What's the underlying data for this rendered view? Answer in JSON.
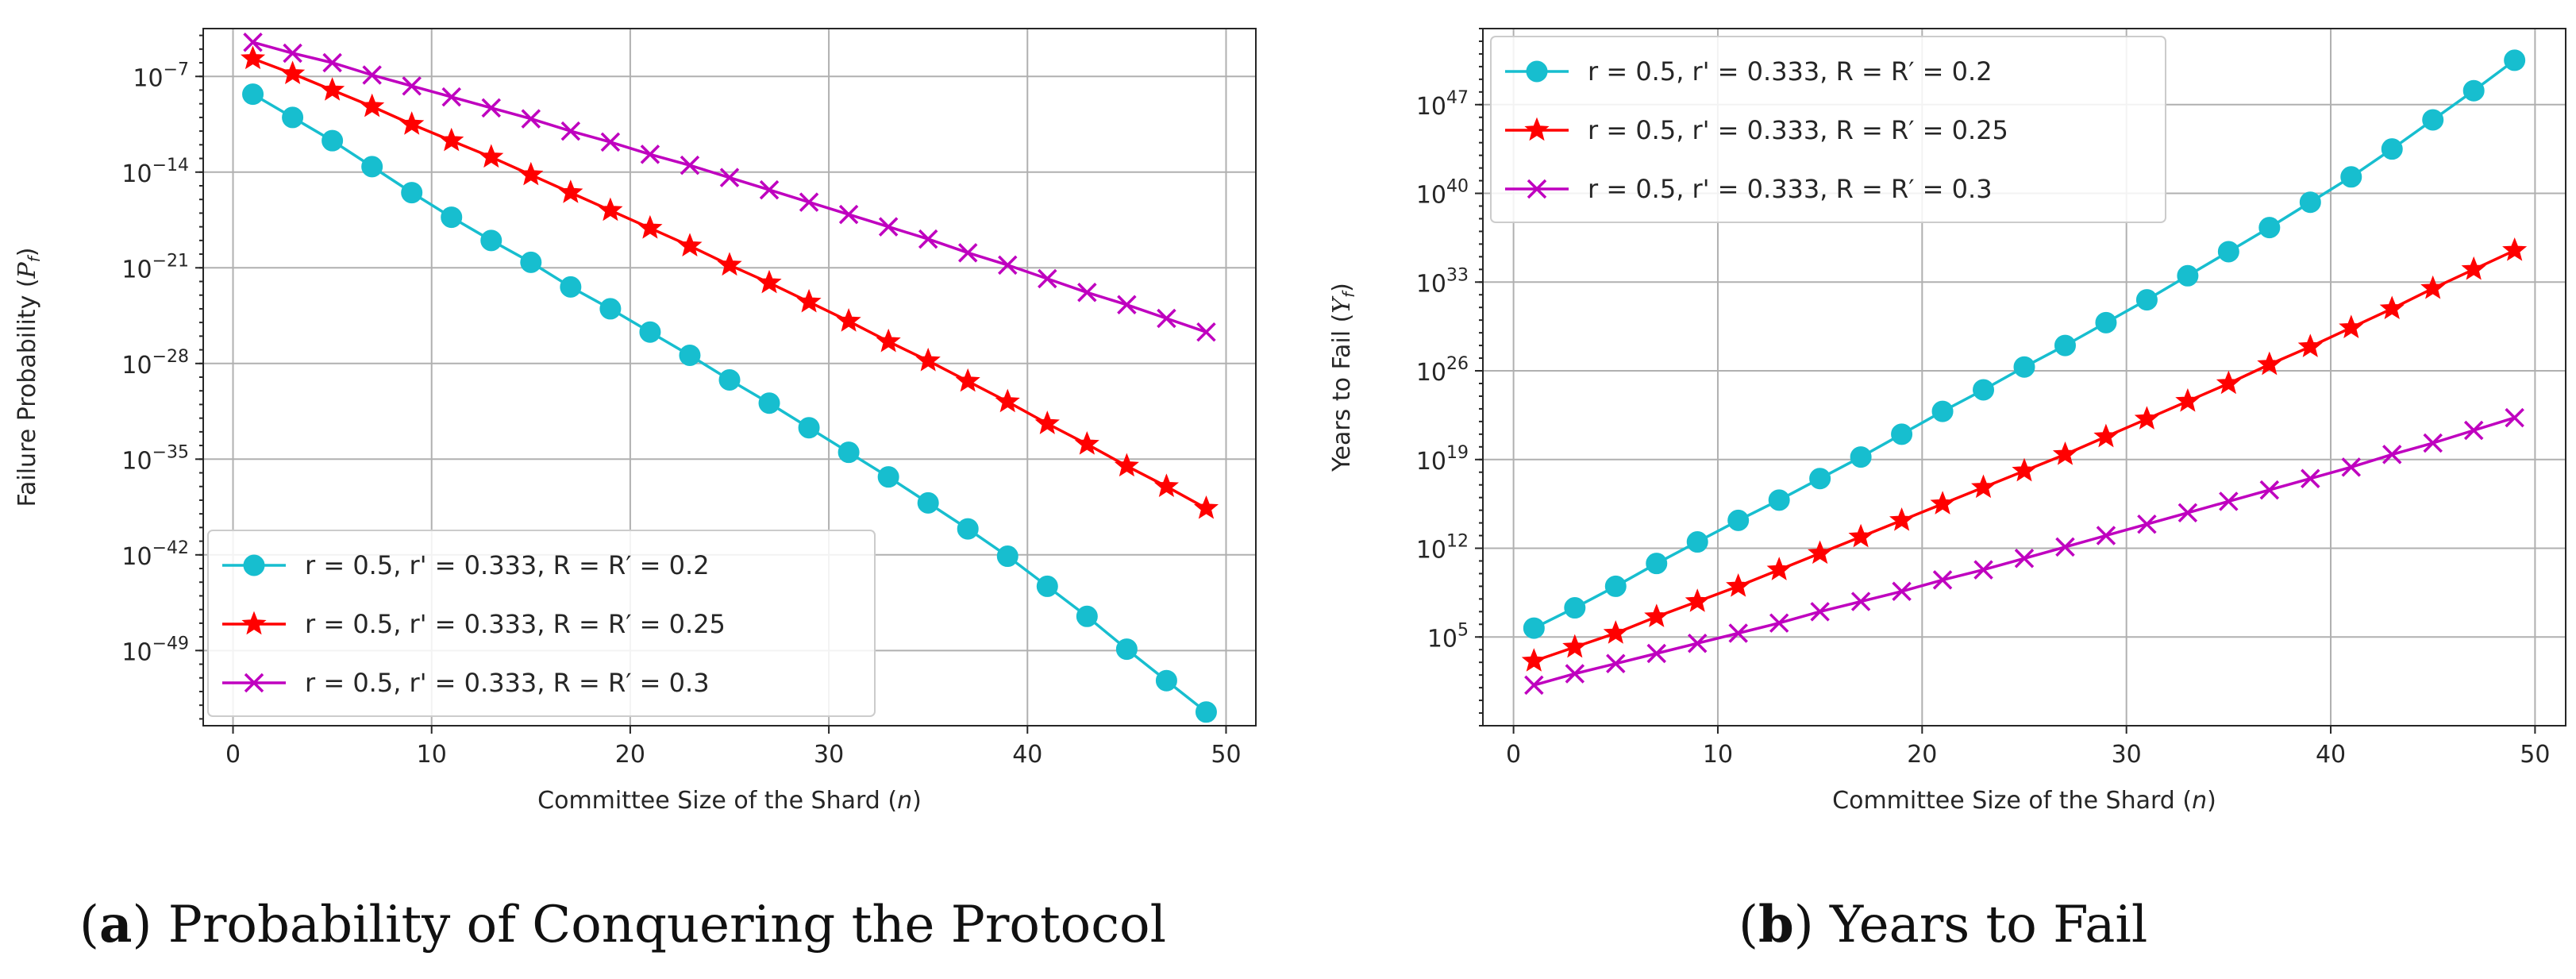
{
  "chart_data": [
    {
      "type": "line",
      "caption_letter": "a",
      "caption_text": " Probability of Conquering the Protocol",
      "xlabel": "Committee Size of the Shard (n)",
      "ylabel": "Failure Probability (P_f)",
      "xlim": [
        -1.5,
        51.5
      ],
      "ylim_log10": [
        -54.5,
        -3.5
      ],
      "yscale": "log",
      "grid": true,
      "legend_loc": "lower-left",
      "x_ticks": [
        0,
        10,
        20,
        30,
        40,
        50
      ],
      "y_ticks": [
        {
          "exp": -7,
          "label": "10",
          "sup": "−7"
        },
        {
          "exp": -14,
          "label": "10",
          "sup": "−14"
        },
        {
          "exp": -21,
          "label": "10",
          "sup": "−21"
        },
        {
          "exp": -28,
          "label": "10",
          "sup": "−28"
        },
        {
          "exp": -35,
          "label": "10",
          "sup": "−35"
        },
        {
          "exp": -42,
          "label": "10",
          "sup": "−42"
        },
        {
          "exp": -49,
          "label": "10",
          "sup": "−49"
        }
      ],
      "x": [
        1,
        3,
        5,
        7,
        9,
        11,
        13,
        15,
        17,
        19,
        21,
        23,
        25,
        27,
        29,
        31,
        33,
        35,
        37,
        39,
        41,
        43,
        45,
        47,
        49
      ],
      "series": [
        {
          "name": " r = 0.5, r' = 0.333,  R = R′  = 0.2",
          "color": "#17BECF",
          "marker": "circle",
          "log10_values": [
            -8.3,
            -10.0,
            -11.7,
            -13.6,
            -15.5,
            -17.3,
            -19.0,
            -20.6,
            -22.4,
            -24.0,
            -25.7,
            -27.4,
            -29.2,
            -30.9,
            -32.7,
            -34.5,
            -36.3,
            -38.2,
            -40.1,
            -42.1,
            -44.3,
            -46.5,
            -48.9,
            -51.2,
            -53.5
          ]
        },
        {
          "name": "r = 0.5, r' = 0.333, R = R′  = 0.25",
          "color": "#FF0000",
          "marker": "star",
          "log10_values": [
            -5.7,
            -6.8,
            -8.0,
            -9.2,
            -10.5,
            -11.7,
            -12.9,
            -14.2,
            -15.5,
            -16.8,
            -18.1,
            -19.4,
            -20.8,
            -22.1,
            -23.5,
            -24.9,
            -26.4,
            -27.8,
            -29.3,
            -30.8,
            -32.4,
            -33.9,
            -35.5,
            -37.0,
            -38.6
          ]
        },
        {
          "name": "r = 0.5, r' = 0.333, R = R′  = 0.3",
          "color": "#BF00BF",
          "marker": "x",
          "log10_values": [
            -4.5,
            -5.3,
            -6.0,
            -6.9,
            -7.7,
            -8.5,
            -9.3,
            -10.1,
            -11.0,
            -11.8,
            -12.7,
            -13.5,
            -14.4,
            -15.3,
            -16.2,
            -17.1,
            -18.0,
            -18.9,
            -19.9,
            -20.8,
            -21.8,
            -22.8,
            -23.7,
            -24.7,
            -25.7
          ]
        }
      ]
    },
    {
      "type": "line",
      "caption_letter": "b",
      "caption_text": " Years to Fail",
      "xlabel": "Committee Size of the Shard (n)",
      "ylabel": "Years to Fail (Y_f)",
      "xlim": [
        -1.5,
        51.5
      ],
      "ylim_log10": [
        -2,
        53
      ],
      "yscale": "log",
      "grid": true,
      "legend_loc": "top-left",
      "x_ticks": [
        0,
        10,
        20,
        30,
        40,
        50
      ],
      "y_ticks": [
        {
          "exp": 5,
          "label": "10",
          "sup": "5"
        },
        {
          "exp": 12,
          "label": "10",
          "sup": "12"
        },
        {
          "exp": 19,
          "label": "10",
          "sup": "19"
        },
        {
          "exp": 26,
          "label": "10",
          "sup": "26"
        },
        {
          "exp": 33,
          "label": "10",
          "sup": "33"
        },
        {
          "exp": 40,
          "label": "10",
          "sup": "40"
        },
        {
          "exp": 47,
          "label": "10",
          "sup": "47"
        }
      ],
      "x": [
        1,
        3,
        5,
        7,
        9,
        11,
        13,
        15,
        17,
        19,
        21,
        23,
        25,
        27,
        29,
        31,
        33,
        35,
        37,
        39,
        41,
        43,
        45,
        47,
        49
      ],
      "series": [
        {
          "name": " r = 0.5, r' = 0.333,  R = R′  = 0.2",
          "color": "#17BECF",
          "marker": "circle",
          "log10_values": [
            5.7,
            7.3,
            9.0,
            10.8,
            12.5,
            14.2,
            15.8,
            17.5,
            19.2,
            21.0,
            22.8,
            24.5,
            26.3,
            28.0,
            29.8,
            31.6,
            33.5,
            35.4,
            37.3,
            39.3,
            41.3,
            43.5,
            45.8,
            48.1,
            50.5
          ]
        },
        {
          "name": "r = 0.5, r' = 0.333, R = R′  = 0.25",
          "color": "#FF0000",
          "marker": "star",
          "log10_values": [
            3.1,
            4.2,
            5.3,
            6.6,
            7.8,
            9.0,
            10.3,
            11.6,
            12.9,
            14.2,
            15.5,
            16.8,
            18.1,
            19.4,
            20.8,
            22.2,
            23.6,
            25.0,
            26.5,
            27.9,
            29.4,
            30.9,
            32.5,
            34.0,
            35.5
          ]
        },
        {
          "name": "r = 0.5, r' = 0.333, R = R′  = 0.3",
          "color": "#BF00BF",
          "marker": "x",
          "log10_values": [
            1.2,
            2.1,
            2.9,
            3.7,
            4.5,
            5.3,
            6.1,
            7.0,
            7.8,
            8.6,
            9.5,
            10.3,
            11.2,
            12.1,
            13.0,
            13.9,
            14.8,
            15.7,
            16.6,
            17.5,
            18.4,
            19.4,
            20.3,
            21.3,
            22.3
          ]
        }
      ]
    }
  ]
}
